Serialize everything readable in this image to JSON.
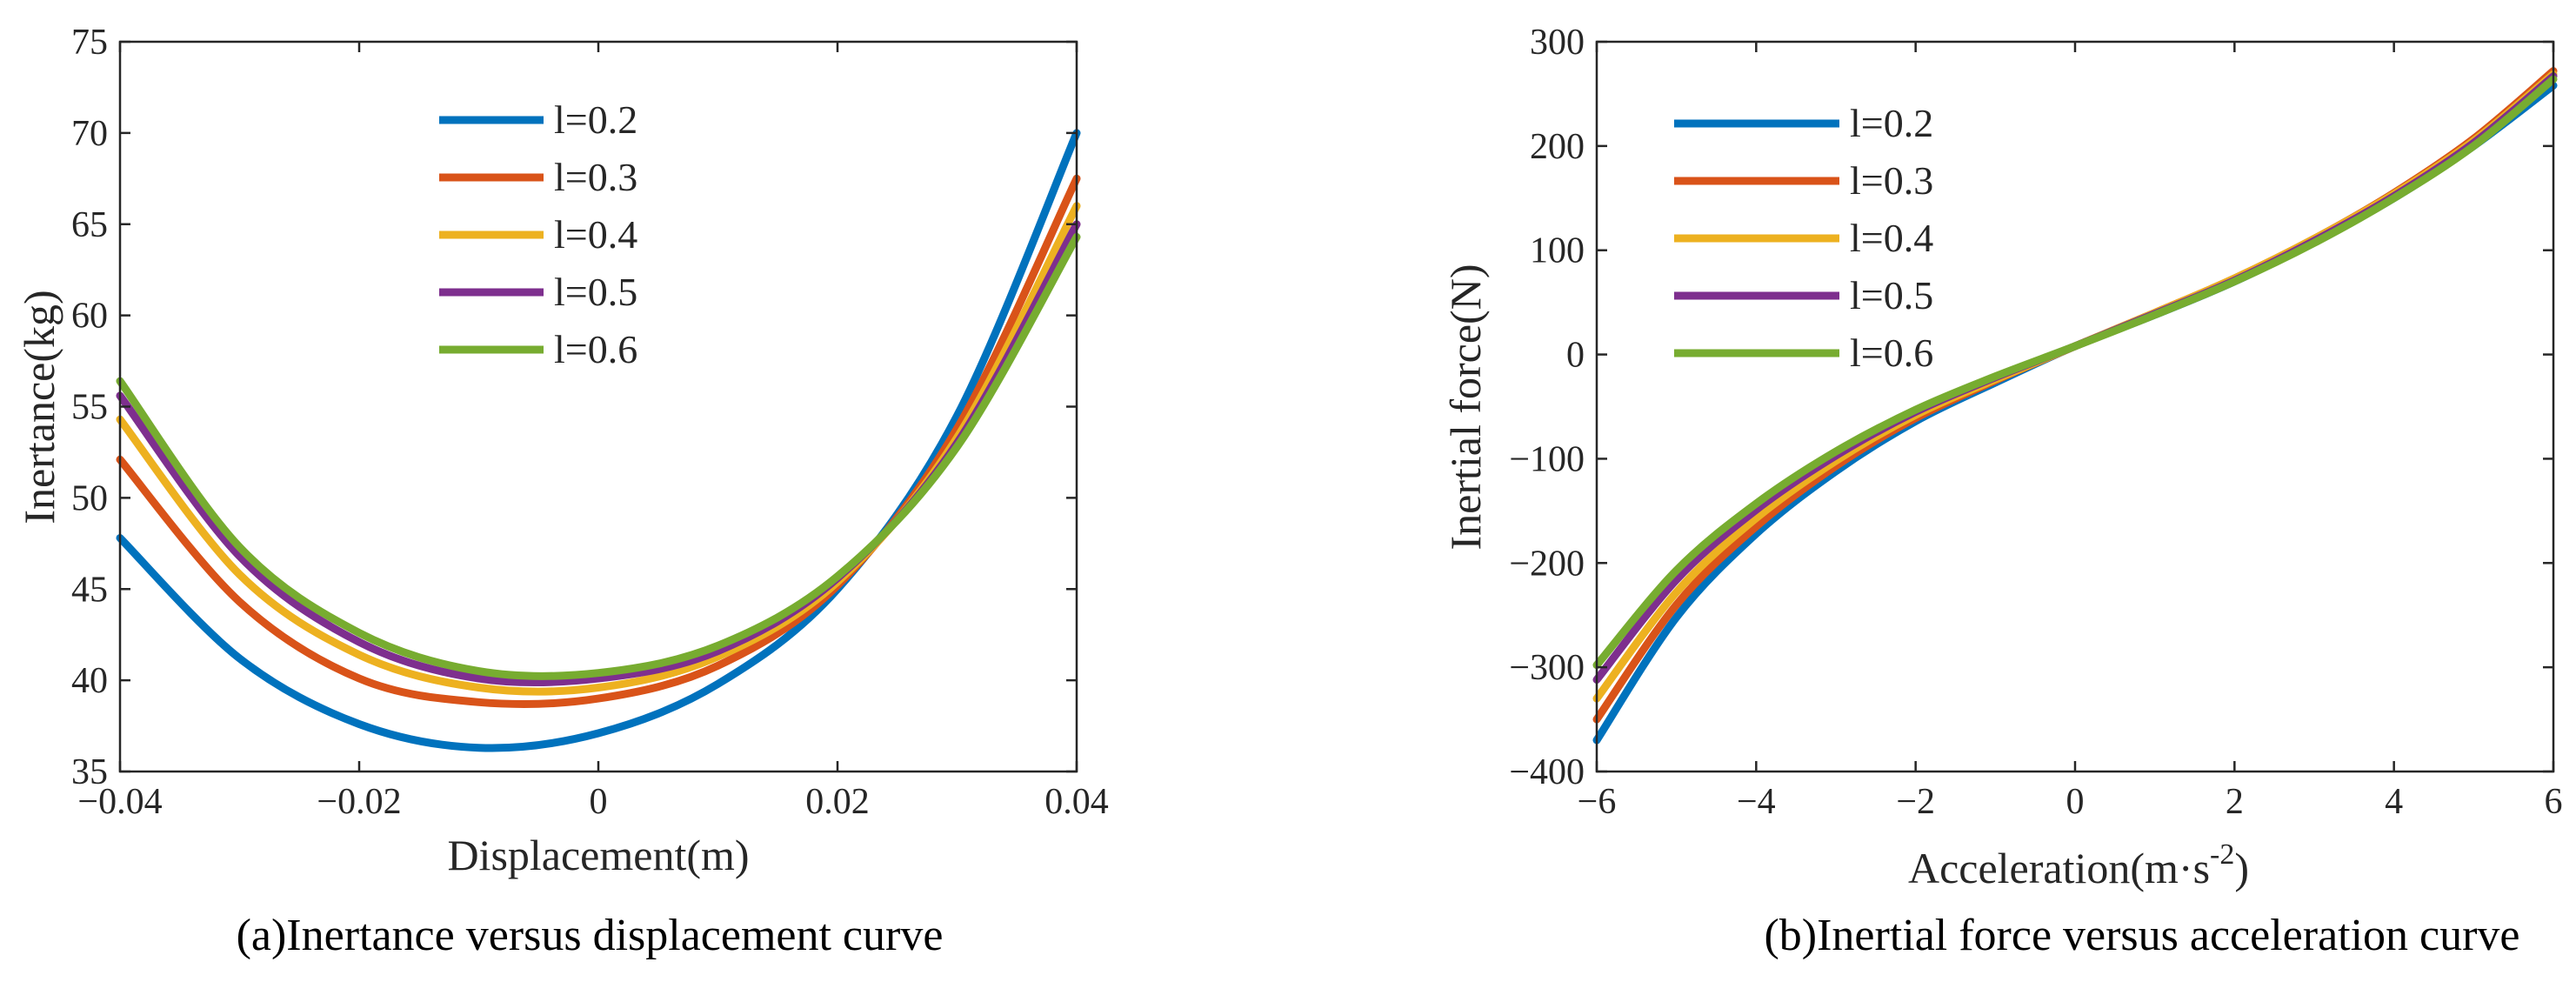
{
  "chart_data": [
    {
      "type": "line",
      "id": "a",
      "caption": "(a)Inertance versus displacement curve",
      "title": "",
      "xlabel": "Displacement(m)",
      "ylabel": "Inertance(kg)",
      "xlim": [
        -0.04,
        0.04
      ],
      "ylim": [
        35,
        75
      ],
      "xticks": [
        -0.04,
        -0.02,
        0,
        0.02,
        0.04
      ],
      "xtick_labels": [
        "−0.04",
        "−0.02",
        "0",
        "0.02",
        "0.04"
      ],
      "yticks": [
        35,
        40,
        45,
        50,
        55,
        60,
        65,
        70,
        75
      ],
      "ytick_labels": [
        "35",
        "40",
        "45",
        "50",
        "55",
        "60",
        "65",
        "70",
        "75"
      ],
      "grid": false,
      "legend_position": "top-center",
      "x": [
        -0.04,
        -0.03,
        -0.02,
        -0.01,
        0,
        0.01,
        0.02,
        0.03,
        0.04
      ],
      "series": [
        {
          "name": "l=0.2",
          "color": "#0072BD",
          "values": [
            47.8,
            41.2,
            37.6,
            36.3,
            37.1,
            39.8,
            45.0,
            54.5,
            70.0
          ]
        },
        {
          "name": "l=0.3",
          "color": "#D95319",
          "values": [
            52.1,
            44.3,
            40.1,
            38.8,
            39.0,
            40.8,
            45.2,
            53.8,
            67.5
          ]
        },
        {
          "name": "l=0.4",
          "color": "#EDB120",
          "values": [
            54.3,
            45.8,
            41.4,
            39.6,
            39.6,
            41.3,
            45.4,
            53.3,
            66.0
          ]
        },
        {
          "name": "l=0.5",
          "color": "#7E2F8E",
          "values": [
            55.6,
            46.8,
            42.1,
            40.1,
            40.1,
            41.6,
            45.6,
            53.0,
            65.0
          ]
        },
        {
          "name": "l=0.6",
          "color": "#77AC30",
          "values": [
            56.4,
            47.3,
            42.6,
            40.5,
            40.4,
            41.9,
            45.7,
            52.8,
            64.3
          ]
        }
      ]
    },
    {
      "type": "line",
      "id": "b",
      "caption": "(b)Inertial force versus acceleration curve",
      "title": "",
      "xlabel": "Acceleration(m·s",
      "xlabel_superscript": "-2",
      "xlabel_suffix": ")",
      "ylabel": "Inertial force(N)",
      "xlim": [
        -6,
        6
      ],
      "ylim": [
        -400,
        300
      ],
      "xticks": [
        -6,
        -4,
        -2,
        0,
        2,
        4,
        6
      ],
      "xtick_labels": [
        "−6",
        "−4",
        "−2",
        "0",
        "2",
        "4",
        "6"
      ],
      "yticks": [
        -400,
        -300,
        -200,
        -100,
        0,
        100,
        200,
        300
      ],
      "ytick_labels": [
        "−400",
        "−300",
        "−200",
        "−100",
        "0",
        "100",
        "200",
        "300"
      ],
      "grid": false,
      "legend_position": "top-left",
      "x": [
        -6,
        -5,
        -4,
        -3,
        -2,
        -1,
        0,
        1,
        2,
        3,
        4,
        5,
        6
      ],
      "series": [
        {
          "name": "l=0.2",
          "color": "#0072BD",
          "values": [
            -370,
            -252,
            -172,
            -112,
            -64,
            -27,
            8,
            38,
            70,
            108,
            150,
            200,
            258
          ]
        },
        {
          "name": "l=0.3",
          "color": "#D95319",
          "values": [
            -350,
            -240,
            -165,
            -107,
            -61,
            -25,
            8,
            40,
            73,
            111,
            155,
            207,
            272
          ]
        },
        {
          "name": "l=0.4",
          "color": "#EDB120",
          "values": [
            -330,
            -228,
            -157,
            -102,
            -58,
            -24,
            8,
            40,
            73,
            111,
            154,
            205,
            269
          ]
        },
        {
          "name": "l=0.5",
          "color": "#7E2F8E",
          "values": [
            -312,
            -216,
            -149,
            -97,
            -55,
            -22,
            8,
            39,
            71,
            109,
            152,
            203,
            267
          ]
        },
        {
          "name": "l=0.6",
          "color": "#77AC30",
          "values": [
            -298,
            -207,
            -143,
            -93,
            -53,
            -21,
            8,
            38,
            70,
            107,
            150,
            200,
            264
          ]
        }
      ]
    }
  ]
}
